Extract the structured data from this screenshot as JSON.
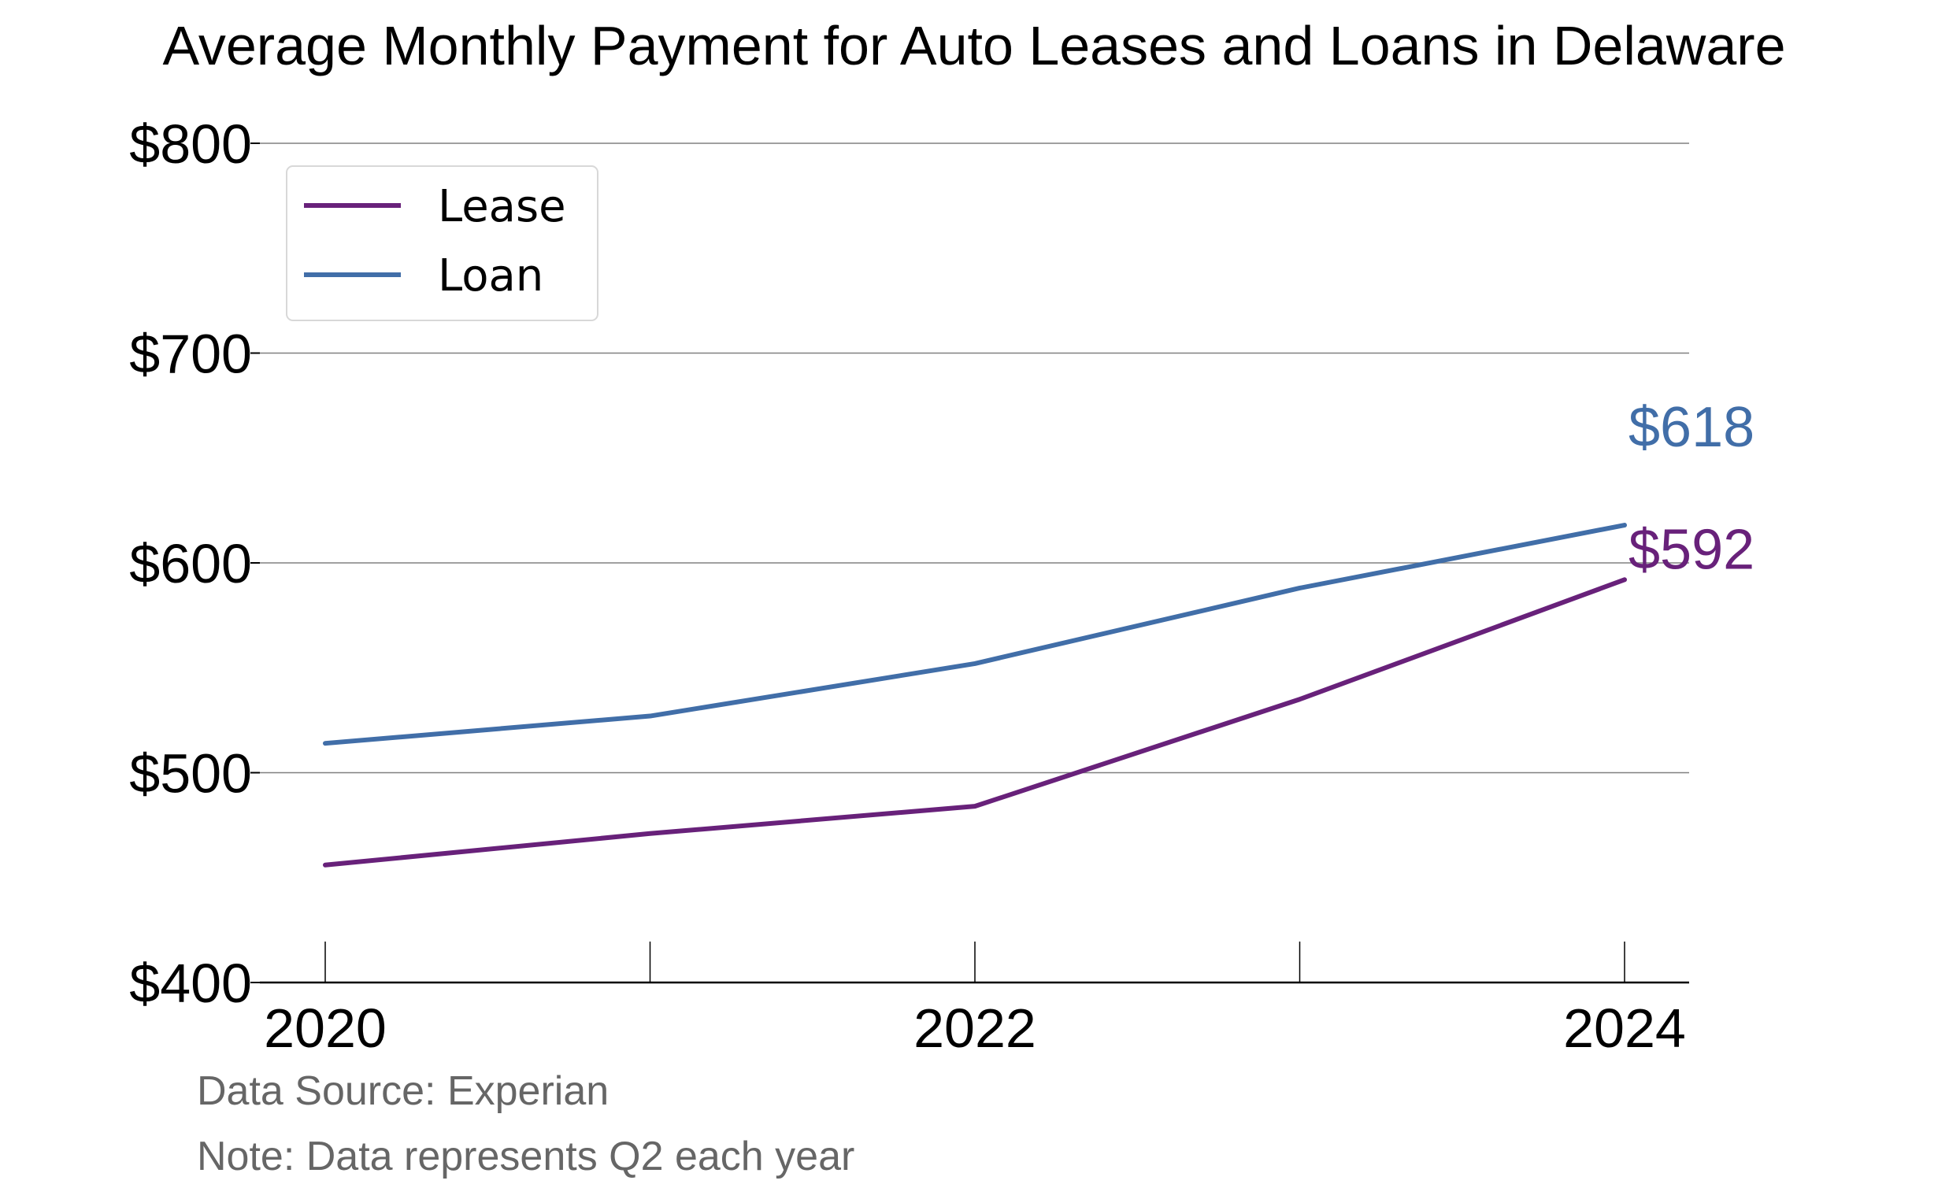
{
  "chart_data": {
    "type": "line",
    "title": "Average Monthly Payment for Auto Leases and Loans in Delaware",
    "xlabel": "",
    "ylabel": "",
    "x": [
      2020,
      2021,
      2022,
      2023,
      2024
    ],
    "x_tick_labels": [
      "2020",
      "2022",
      "2024"
    ],
    "x_tick_values": [
      2020,
      2022,
      2024
    ],
    "ylim": [
      400,
      800
    ],
    "y_tick_values": [
      400,
      500,
      600,
      700,
      800
    ],
    "y_tick_labels": [
      "$400",
      "$500",
      "$600",
      "$700",
      "$800"
    ],
    "grid": true,
    "legend_position": "top-left",
    "series": [
      {
        "name": "Lease",
        "color": "#68217a",
        "values": [
          456,
          471,
          484,
          535,
          592
        ],
        "end_label": "$592"
      },
      {
        "name": "Loan",
        "color": "#416ea8",
        "values": [
          514,
          527,
          552,
          588,
          618
        ],
        "end_label": "$618"
      }
    ],
    "notes": [
      "Data Source: Experian",
      "Note: Data represents Q2 each year"
    ]
  }
}
